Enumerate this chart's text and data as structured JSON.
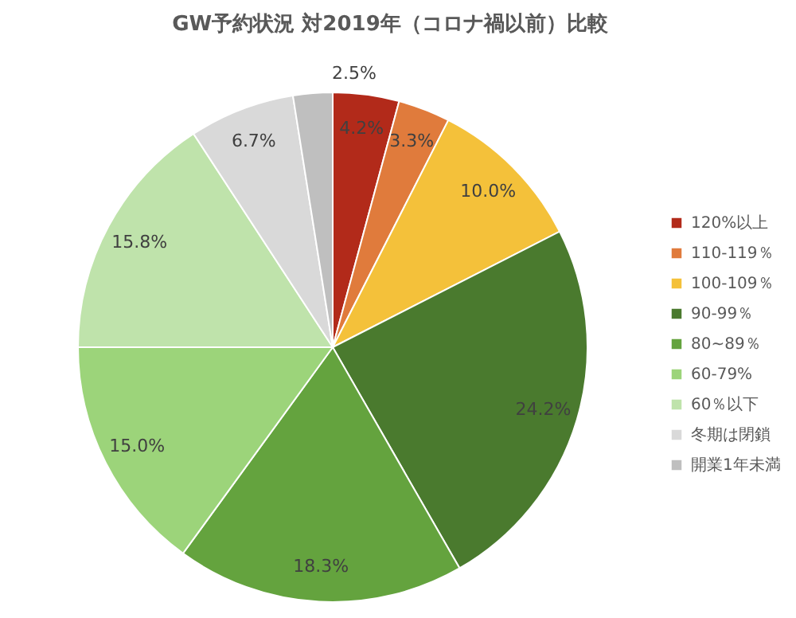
{
  "chart_data": {
    "type": "pie",
    "title": "GW予約状況 対2019年（コロナ禍以前）比較",
    "categories": [
      "120%以上",
      "110-119％",
      "100-109％",
      "90-99％",
      "80~89％",
      "60-79%",
      "60％以下",
      "冬期は閉鎖",
      "開業1年未満"
    ],
    "values": [
      4.2,
      3.3,
      10.0,
      24.2,
      18.3,
      15.0,
      15.8,
      6.7,
      2.5
    ],
    "colors": [
      "#b22a1a",
      "#e07b3c",
      "#f4c13a",
      "#4a7a2e",
      "#64a33e",
      "#9cd47a",
      "#bfe3ab",
      "#d9d9d9",
      "#bfbfbf"
    ],
    "value_labels": [
      "4.2%",
      "3.3%",
      "10.0%",
      "24.2%",
      "18.3%",
      "15.0%",
      "15.8%",
      "6.7%",
      "2.5%"
    ],
    "legend": "right"
  }
}
